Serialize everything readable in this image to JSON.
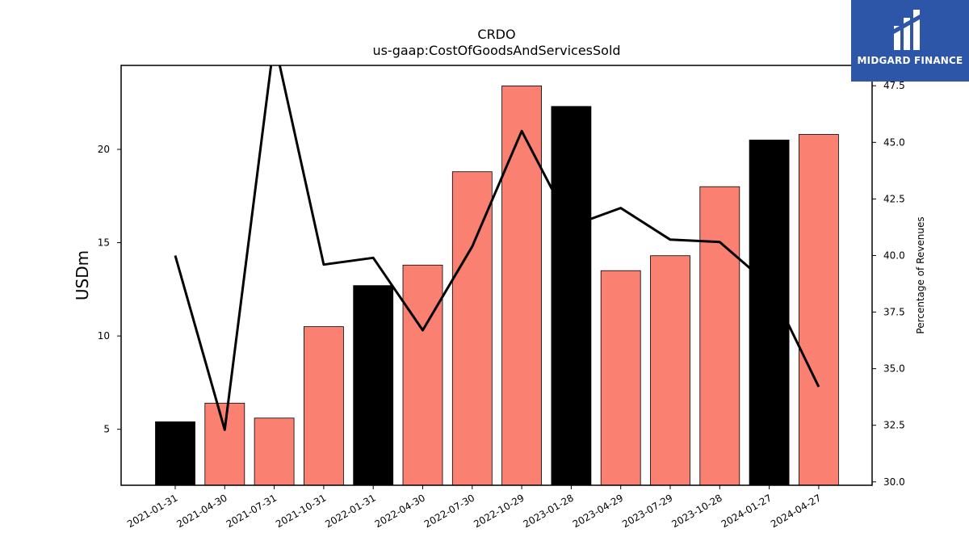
{
  "chart_data": {
    "type": "bar",
    "title": "CRDO",
    "subtitle": "us-gaap:CostOfGoodsAndServicesSold",
    "ylabel": "USDm",
    "y2label": "Percentage of Revenues",
    "categories": [
      "2021-01-31",
      "2021-04-30",
      "2021-07-31",
      "2021-10-31",
      "2022-01-31",
      "2022-04-30",
      "2022-07-30",
      "2022-10-29",
      "2023-01-28",
      "2023-04-29",
      "2023-07-29",
      "2023-10-28",
      "2024-01-27",
      "2024-04-27"
    ],
    "series": [
      {
        "type": "bar",
        "values": [
          5.4,
          6.4,
          5.6,
          10.5,
          12.7,
          13.8,
          18.8,
          23.4,
          22.3,
          13.5,
          14.3,
          18.0,
          20.5,
          20.8
        ],
        "colors": [
          "#000000",
          "#fa8072",
          "#fa8072",
          "#fa8072",
          "#000000",
          "#fa8072",
          "#fa8072",
          "#fa8072",
          "#000000",
          "#fa8072",
          "#fa8072",
          "#fa8072",
          "#000000",
          "#fa8072"
        ]
      },
      {
        "type": "line",
        "axis": "right",
        "values": [
          40.0,
          32.3,
          49.5,
          39.6,
          39.9,
          36.7,
          40.4,
          45.5,
          41.3,
          42.1,
          40.7,
          40.6,
          38.7,
          34.2
        ],
        "color": "#000000"
      }
    ],
    "ylim": [
      2.0,
      24.5
    ],
    "y2lim": [
      29.85,
      48.4
    ],
    "yticks": [
      5,
      10,
      15,
      20
    ],
    "y2ticks": [
      30.0,
      32.5,
      35.0,
      37.5,
      40.0,
      42.5,
      45.0,
      47.5
    ],
    "grid": false
  },
  "logo": {
    "text": "MIDGARD FINANCE",
    "color": "#2d56a8"
  }
}
